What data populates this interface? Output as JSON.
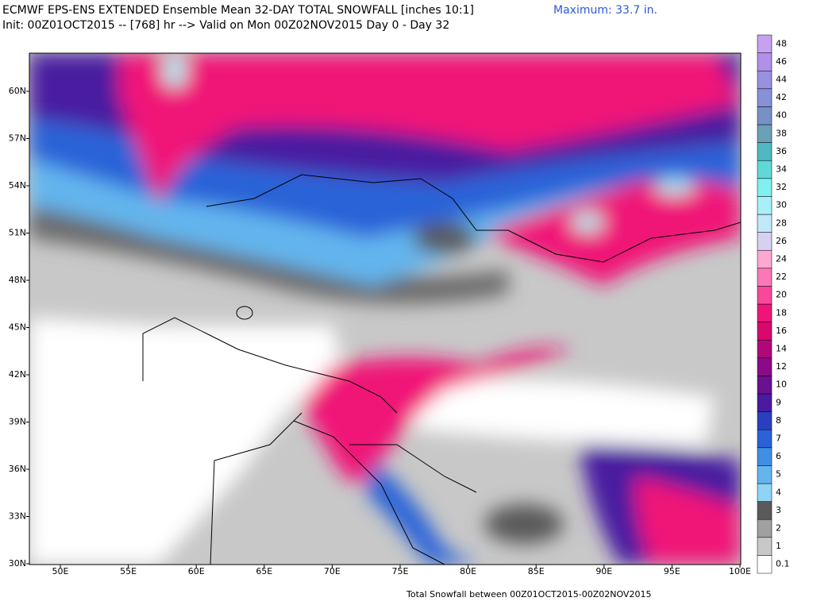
{
  "header": {
    "title": "ECMWF EPS-ENS EXTENDED Ensemble Mean 32-DAY TOTAL SNOWFALL [inches 10:1]",
    "subtitle": "Init: 00Z01OCT2015 -- [768] hr --> Valid on Mon 00Z02NOV2015  Day 0 - Day 32",
    "maximum": "Maximum:  33.7 in."
  },
  "map": {
    "lat_labels": [
      "60N",
      "57N",
      "54N",
      "51N",
      "48N",
      "45N",
      "42N",
      "39N",
      "36N",
      "33N",
      "30N"
    ],
    "lon_labels": [
      "50E",
      "55E",
      "60E",
      "65E",
      "70E",
      "75E",
      "80E",
      "85E",
      "90E",
      "95E",
      "100E"
    ]
  },
  "legend": {
    "labels": [
      "0.1",
      "1",
      "2",
      "3",
      "4",
      "5",
      "6",
      "7",
      "8",
      "9",
      "10",
      "12",
      "14",
      "16",
      "18",
      "20",
      "22",
      "24",
      "26",
      "28",
      "30",
      "32",
      "34",
      "36",
      "38",
      "40",
      "42",
      "44",
      "46",
      "48"
    ],
    "colors": [
      "#ffffff",
      "#c8c8c8",
      "#a0a0a0",
      "#5a5a5a",
      "#8fd3f5",
      "#63b5ee",
      "#3f8fe4",
      "#2a63d8",
      "#2a3fc0",
      "#4a1aa0",
      "#6a1090",
      "#8c0a8a",
      "#b0087a",
      "#d8086c",
      "#f01478",
      "#f8489a",
      "#fa78b8",
      "#fca8d0",
      "#d8d0f0",
      "#c0e8f8",
      "#a8f0f8",
      "#80f0f0",
      "#60d8d8",
      "#50b8c0",
      "#6aa0b8",
      "#7890c8",
      "#8890d8",
      "#9890e0",
      "#b090e8",
      "#c8a0f0"
    ]
  },
  "footer": "Total Snowfall between 00Z01OCT2015-00Z02NOV2015"
}
